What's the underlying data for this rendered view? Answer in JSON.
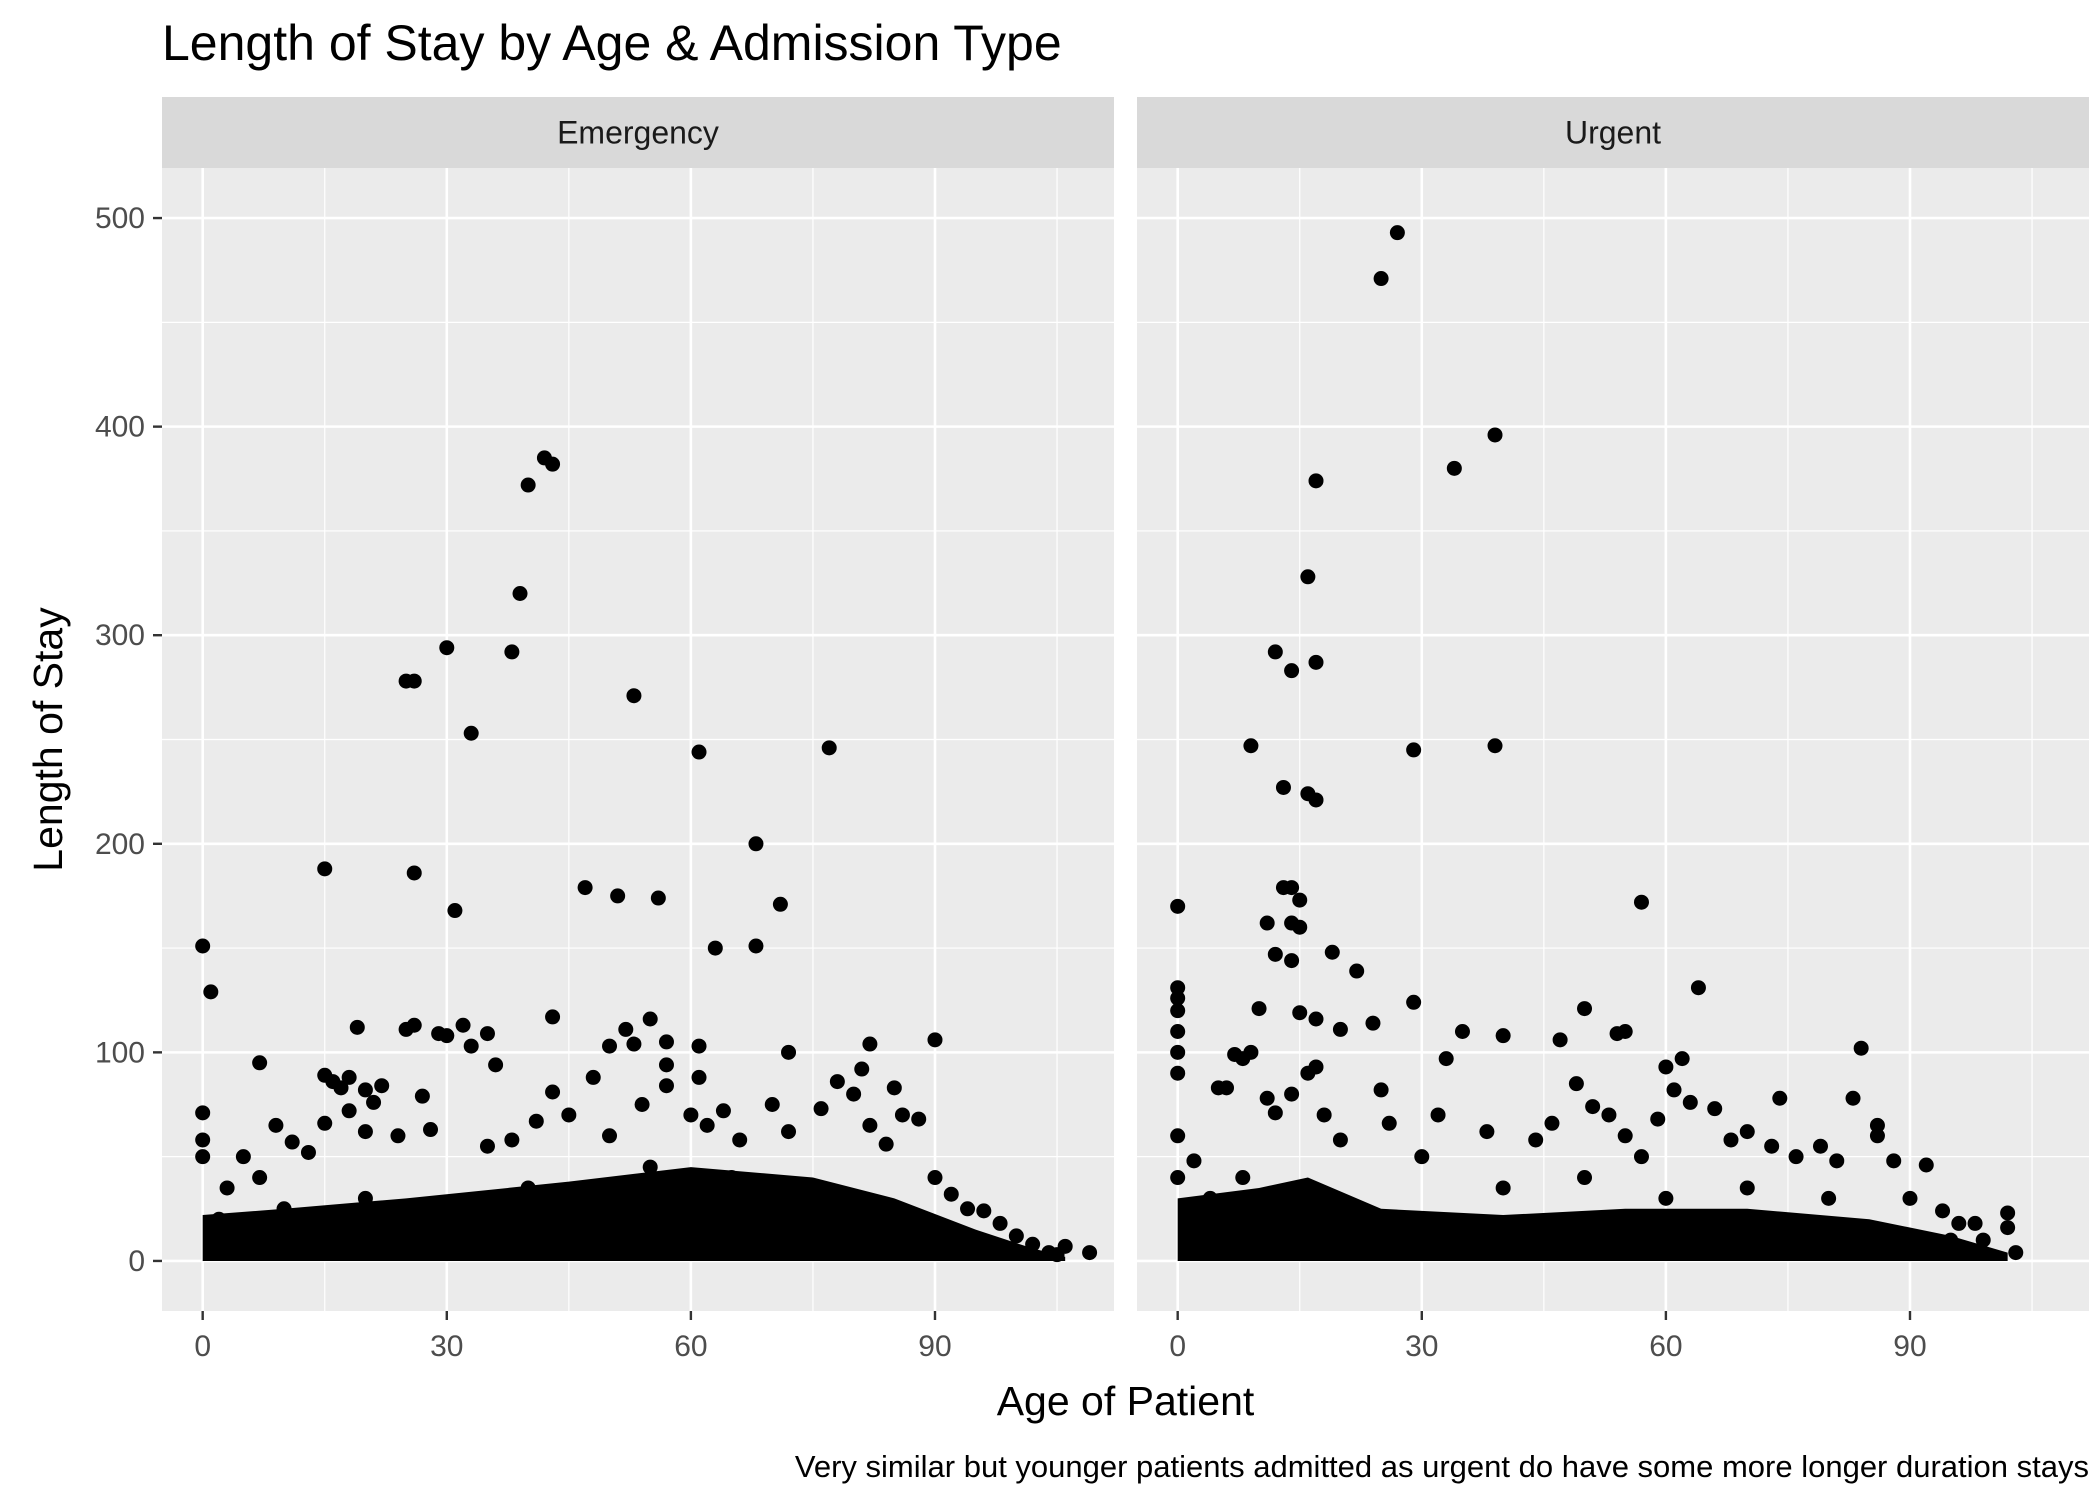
{
  "chart_data": {
    "type": "scatter",
    "title": "Length of Stay by Age & Admission Type",
    "xlabel": "Age of Patient",
    "ylabel": "Length of Stay",
    "caption": "Very similar but younger patients admitted as urgent do have some more longer duration stays",
    "xlim": [
      -5,
      112
    ],
    "ylim": [
      -24,
      524
    ],
    "x_ticks": [
      0,
      30,
      60,
      90
    ],
    "y_ticks": [
      0,
      100,
      200,
      300,
      400,
      500
    ],
    "grid": true,
    "point_color": "#000000",
    "panel_background": "#EBEBEB",
    "strip_background": "#D9D9D9",
    "panels": [
      {
        "name": "Emergency",
        "points": [
          [
            0,
            151
          ],
          [
            1,
            129
          ],
          [
            7,
            95
          ],
          [
            15,
            188
          ],
          [
            26,
            186
          ],
          [
            25,
            278
          ],
          [
            26,
            278
          ],
          [
            30,
            294
          ],
          [
            31,
            168
          ],
          [
            33,
            253
          ],
          [
            38,
            292
          ],
          [
            39,
            320
          ],
          [
            40,
            372
          ],
          [
            42,
            385
          ],
          [
            43,
            382
          ],
          [
            53,
            271
          ],
          [
            61,
            244
          ],
          [
            77,
            246
          ],
          [
            68,
            200
          ],
          [
            71,
            171
          ],
          [
            47,
            179
          ],
          [
            51,
            175
          ],
          [
            56,
            174
          ],
          [
            63,
            150
          ],
          [
            68,
            151
          ],
          [
            19,
            112
          ],
          [
            25,
            111
          ],
          [
            26,
            113
          ],
          [
            29,
            109
          ],
          [
            30,
            108
          ],
          [
            32,
            113
          ],
          [
            33,
            103
          ],
          [
            35,
            109
          ],
          [
            36,
            94
          ],
          [
            43,
            117
          ],
          [
            50,
            103
          ],
          [
            52,
            111
          ],
          [
            53,
            104
          ],
          [
            55,
            116
          ],
          [
            57,
            105
          ],
          [
            57,
            94
          ],
          [
            61,
            103
          ],
          [
            72,
            100
          ],
          [
            82,
            104
          ],
          [
            90,
            106
          ],
          [
            15,
            89
          ],
          [
            16,
            86
          ],
          [
            17,
            83
          ],
          [
            18,
            88
          ],
          [
            18,
            72
          ],
          [
            20,
            82
          ],
          [
            21,
            76
          ],
          [
            22,
            84
          ],
          [
            27,
            79
          ],
          [
            9,
            65
          ],
          [
            11,
            57
          ],
          [
            15,
            66
          ],
          [
            0,
            71
          ],
          [
            0,
            58
          ],
          [
            0,
            50
          ],
          [
            3,
            35
          ],
          [
            5,
            50
          ],
          [
            7,
            40
          ],
          [
            13,
            52
          ],
          [
            20,
            62
          ],
          [
            24,
            60
          ],
          [
            28,
            63
          ],
          [
            35,
            55
          ],
          [
            38,
            58
          ],
          [
            41,
            67
          ],
          [
            43,
            81
          ],
          [
            45,
            70
          ],
          [
            48,
            88
          ],
          [
            50,
            60
          ],
          [
            54,
            75
          ],
          [
            57,
            84
          ],
          [
            60,
            70
          ],
          [
            61,
            88
          ],
          [
            62,
            65
          ],
          [
            64,
            72
          ],
          [
            66,
            58
          ],
          [
            70,
            75
          ],
          [
            72,
            62
          ],
          [
            76,
            73
          ],
          [
            78,
            86
          ],
          [
            80,
            80
          ],
          [
            81,
            92
          ],
          [
            82,
            65
          ],
          [
            85,
            83
          ],
          [
            86,
            70
          ],
          [
            88,
            68
          ],
          [
            84,
            56
          ],
          [
            90,
            40
          ],
          [
            92,
            32
          ],
          [
            94,
            25
          ],
          [
            96,
            24
          ],
          [
            98,
            18
          ],
          [
            100,
            12
          ],
          [
            102,
            8
          ],
          [
            104,
            4
          ],
          [
            106,
            7
          ],
          [
            109,
            4
          ],
          [
            105,
            3
          ],
          [
            2,
            20
          ],
          [
            10,
            25
          ],
          [
            20,
            30
          ],
          [
            40,
            35
          ],
          [
            55,
            45
          ],
          [
            65,
            40
          ],
          [
            75,
            35
          ]
        ]
      },
      {
        "name": "Urgent",
        "points": [
          [
            27,
            493
          ],
          [
            25,
            471
          ],
          [
            39,
            396
          ],
          [
            34,
            380
          ],
          [
            17,
            374
          ],
          [
            16,
            328
          ],
          [
            12,
            292
          ],
          [
            14,
            283
          ],
          [
            17,
            287
          ],
          [
            9,
            247
          ],
          [
            29,
            245
          ],
          [
            39,
            247
          ],
          [
            13,
            227
          ],
          [
            16,
            224
          ],
          [
            17,
            221
          ],
          [
            13,
            179
          ],
          [
            14,
            179
          ],
          [
            15,
            173
          ],
          [
            14,
            162
          ],
          [
            15,
            160
          ],
          [
            11,
            162
          ],
          [
            12,
            147
          ],
          [
            14,
            144
          ],
          [
            19,
            148
          ],
          [
            22,
            139
          ],
          [
            57,
            172
          ],
          [
            0,
            170
          ],
          [
            0,
            131
          ],
          [
            0,
            126
          ],
          [
            0,
            120
          ],
          [
            0,
            110
          ],
          [
            0,
            100
          ],
          [
            0,
            90
          ],
          [
            10,
            121
          ],
          [
            15,
            119
          ],
          [
            17,
            116
          ],
          [
            20,
            111
          ],
          [
            24,
            114
          ],
          [
            29,
            124
          ],
          [
            35,
            110
          ],
          [
            40,
            108
          ],
          [
            33,
            97
          ],
          [
            47,
            106
          ],
          [
            50,
            121
          ],
          [
            54,
            109
          ],
          [
            55,
            110
          ],
          [
            60,
            93
          ],
          [
            62,
            97
          ],
          [
            64,
            131
          ],
          [
            84,
            102
          ],
          [
            83,
            78
          ],
          [
            74,
            78
          ],
          [
            86,
            65
          ],
          [
            86,
            60
          ],
          [
            88,
            48
          ],
          [
            92,
            46
          ],
          [
            96,
            18
          ],
          [
            98,
            18
          ],
          [
            99,
            10
          ],
          [
            102,
            23
          ],
          [
            102,
            16
          ],
          [
            103,
            4
          ],
          [
            5,
            83
          ],
          [
            6,
            83
          ],
          [
            7,
            99
          ],
          [
            8,
            97
          ],
          [
            9,
            100
          ],
          [
            11,
            78
          ],
          [
            12,
            71
          ],
          [
            14,
            80
          ],
          [
            16,
            90
          ],
          [
            17,
            93
          ],
          [
            18,
            70
          ],
          [
            20,
            58
          ],
          [
            25,
            82
          ],
          [
            26,
            66
          ],
          [
            32,
            70
          ],
          [
            38,
            62
          ],
          [
            44,
            58
          ],
          [
            46,
            66
          ],
          [
            49,
            85
          ],
          [
            51,
            74
          ],
          [
            53,
            70
          ],
          [
            55,
            60
          ],
          [
            57,
            50
          ],
          [
            59,
            68
          ],
          [
            61,
            82
          ],
          [
            63,
            76
          ],
          [
            66,
            73
          ],
          [
            68,
            58
          ],
          [
            70,
            62
          ],
          [
            73,
            55
          ],
          [
            76,
            50
          ],
          [
            79,
            55
          ],
          [
            81,
            48
          ],
          [
            90,
            30
          ],
          [
            94,
            24
          ],
          [
            0,
            60
          ],
          [
            0,
            40
          ],
          [
            2,
            48
          ],
          [
            4,
            30
          ],
          [
            8,
            40
          ],
          [
            30,
            50
          ],
          [
            40,
            35
          ],
          [
            50,
            40
          ],
          [
            60,
            30
          ],
          [
            70,
            35
          ],
          [
            80,
            30
          ],
          [
            1,
            20
          ],
          [
            95,
            10
          ]
        ]
      }
    ]
  }
}
